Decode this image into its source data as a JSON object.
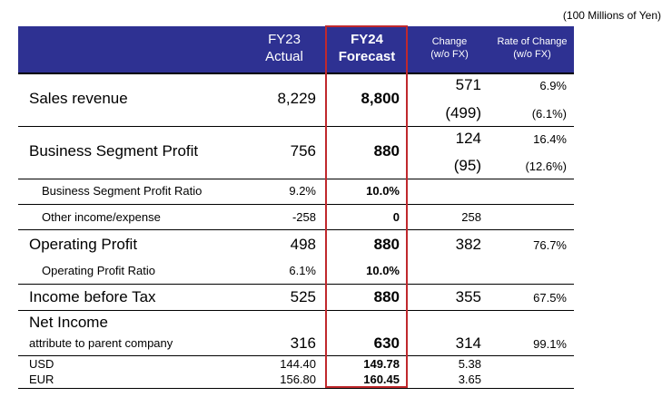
{
  "unit_note": "(100 Millions of Yen)",
  "header": {
    "fy23_line1": "FY23",
    "fy23_line2": "Actual",
    "fy24_line1": "FY24",
    "fy24_line2": "Forecast",
    "change_line1": "Change",
    "change_line2": "(w/o FX)",
    "rate_line1": "Rate of Change",
    "rate_line2": "(w/o FX)"
  },
  "rows": {
    "sales": {
      "label": "Sales revenue",
      "fy23": "8,229",
      "fy24": "8,800",
      "change": "571",
      "change_wo_fx": "(499)",
      "rate": "6.9%",
      "rate_wo_fx": "(6.1%)"
    },
    "bsp": {
      "label": "Business Segment Profit",
      "fy23": "756",
      "fy24": "880",
      "change": "124",
      "change_wo_fx": "(95)",
      "rate": "16.4%",
      "rate_wo_fx": "(12.6%)"
    },
    "bsp_ratio": {
      "label": "Business Segment Profit Ratio",
      "fy23": "9.2%",
      "fy24": "10.0%"
    },
    "other": {
      "label": "Other income/expense",
      "fy23": "-258",
      "fy24": "0",
      "change": "258"
    },
    "op": {
      "label": "Operating Profit",
      "fy23": "498",
      "fy24": "880",
      "change": "382",
      "rate": "76.7%"
    },
    "op_ratio": {
      "label": "Operating Profit Ratio",
      "fy23": "6.1%",
      "fy24": "10.0%"
    },
    "ibt": {
      "label": "Income before Tax",
      "fy23": "525",
      "fy24": "880",
      "change": "355",
      "rate": "67.5%"
    },
    "ni": {
      "label": "Net Income",
      "sublabel": "attribute to parent company",
      "fy23": "316",
      "fy24": "630",
      "change": "314",
      "rate": "99.1%"
    },
    "usd": {
      "label": "USD",
      "fy23": "144.40",
      "fy24": "149.78",
      "change": "5.38"
    },
    "eur": {
      "label": "EUR",
      "fy23": "156.80",
      "fy24": "160.45",
      "change": "3.65"
    }
  },
  "colors": {
    "header_bg": "#2e3192",
    "highlight_border": "#c0282d"
  }
}
